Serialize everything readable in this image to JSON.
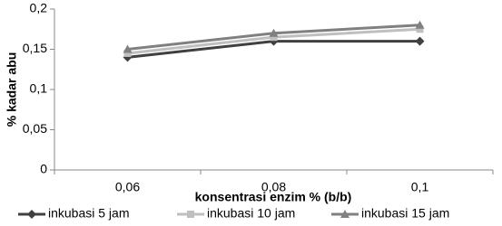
{
  "chart_data": {
    "type": "line",
    "x_label": "konsentrasi enzim % (b/b)",
    "y_label": "% kadar abu",
    "categories": [
      "0,06",
      "0,08",
      "0,1"
    ],
    "series": [
      {
        "name": "inkubasi 5 jam",
        "color": "#404040",
        "marker": "diamond",
        "values": [
          0.14,
          0.16,
          0.16
        ]
      },
      {
        "name": "inkubasi 10 jam",
        "color": "#bfbfbf",
        "marker": "square",
        "values": [
          0.145,
          0.165,
          0.175
        ]
      },
      {
        "name": "inkubasi 15 jam",
        "color": "#808080",
        "marker": "triangle",
        "values": [
          0.15,
          0.17,
          0.18
        ]
      }
    ],
    "ylim": [
      0,
      0.2
    ],
    "yticks": [
      0,
      {
        "value": 0.05,
        "label": "0,05"
      },
      {
        "value": 0.1,
        "label": "0,1"
      },
      {
        "value": 0.15,
        "label": "0,15"
      },
      {
        "value": 0.2,
        "label": "0,2"
      }
    ],
    "grid": false,
    "legend": "bottom"
  }
}
